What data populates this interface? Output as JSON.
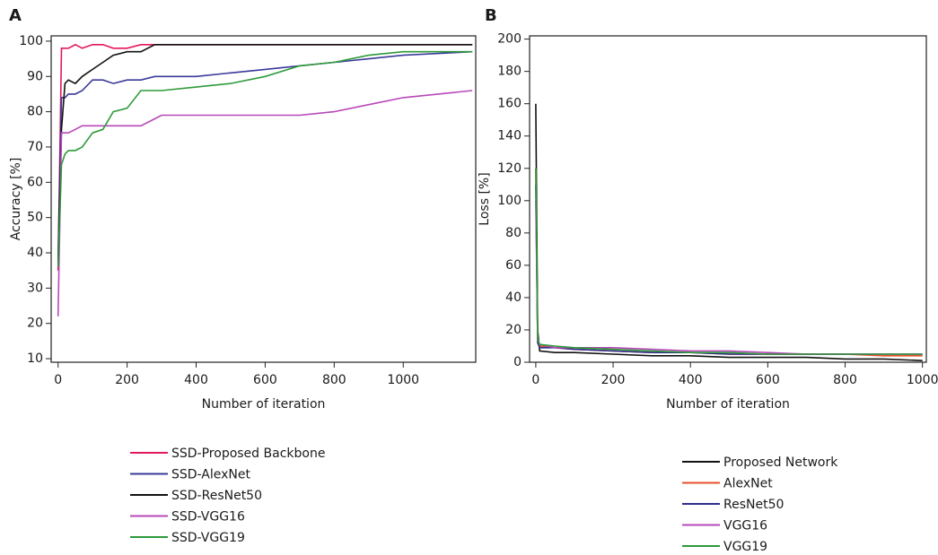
{
  "chart_data": [
    {
      "type": "line",
      "label": "A",
      "x_label": "Number of iteration",
      "y_label": "Accuracy [%]",
      "x": [
        0,
        10,
        20,
        30,
        50,
        70,
        100,
        130,
        160,
        200,
        240,
        280,
        300,
        400,
        500,
        600,
        700,
        800,
        900,
        1000,
        1200
      ],
      "series": [
        {
          "name": "SSD-Proposed Backbone",
          "color": "#e4185a",
          "values": [
            35,
            98,
            98,
            98,
            99,
            98,
            99,
            99,
            98,
            98,
            99,
            99,
            99,
            99,
            99,
            99,
            99,
            99,
            99,
            99,
            99
          ]
        },
        {
          "name": "SSD-AlexNet",
          "color": "#3a3a9a",
          "values": [
            38,
            84,
            84,
            85,
            85,
            86,
            89,
            89,
            88,
            89,
            89,
            90,
            90,
            90,
            91,
            92,
            93,
            94,
            95,
            96,
            97
          ]
        },
        {
          "name": "SSD-ResNet50",
          "color": "#111111",
          "values": [
            37,
            75,
            88,
            89,
            88,
            90,
            92,
            94,
            96,
            97,
            97,
            99,
            99,
            99,
            99,
            99,
            99,
            99,
            99,
            99,
            99
          ]
        },
        {
          "name": "SSD-VGG16",
          "color": "#b748b8",
          "values": [
            22,
            74,
            74,
            74,
            75,
            76,
            76,
            76,
            76,
            76,
            76,
            78,
            79,
            79,
            79,
            79,
            79,
            80,
            82,
            84,
            86
          ]
        },
        {
          "name": "SSD-VGG19",
          "color": "#2e9a3a",
          "values": [
            36,
            65,
            68,
            69,
            69,
            70,
            74,
            75,
            80,
            81,
            86,
            86,
            86,
            87,
            88,
            90,
            93,
            94,
            96,
            97,
            97
          ]
        }
      ],
      "xlim": [
        -20,
        1210
      ],
      "ylim": [
        9,
        101.5
      ],
      "xticks": [
        0,
        200,
        400,
        600,
        800,
        1000
      ],
      "yticks": [
        10,
        20,
        30,
        40,
        50,
        60,
        70,
        80,
        90,
        100
      ]
    },
    {
      "type": "line",
      "label": "B",
      "x_label": "Number of iteration",
      "y_label": "Loss [%]",
      "x": [
        0,
        5,
        10,
        50,
        100,
        200,
        300,
        400,
        500,
        600,
        700,
        800,
        900,
        1000
      ],
      "series": [
        {
          "name": "Proposed Network",
          "color": "#111111",
          "values": [
            160,
            20,
            7,
            6,
            6,
            5,
            4,
            4,
            3,
            3,
            3,
            2,
            2,
            1
          ]
        },
        {
          "name": "AlexNet",
          "color": "#e8502a",
          "values": [
            120,
            15,
            10,
            9,
            8,
            7,
            6,
            6,
            5,
            5,
            5,
            5,
            4,
            4
          ]
        },
        {
          "name": "ResNet50",
          "color": "#2e2e8a",
          "values": [
            110,
            12,
            9,
            9,
            8,
            7,
            6,
            6,
            5,
            5,
            5,
            5,
            5,
            5
          ]
        },
        {
          "name": "VGG16",
          "color": "#b748b8",
          "values": [
            100,
            14,
            11,
            9,
            9,
            9,
            8,
            7,
            7,
            6,
            5,
            5,
            5,
            5
          ]
        },
        {
          "name": "VGG19",
          "color": "#2e9a3a",
          "values": [
            120,
            15,
            11,
            10,
            9,
            8,
            7,
            6,
            6,
            5,
            5,
            5,
            5,
            5
          ]
        }
      ],
      "xlim": [
        -16,
        1010
      ],
      "ylim": [
        0,
        202
      ],
      "xticks": [
        0,
        200,
        400,
        600,
        800,
        1000
      ],
      "yticks": [
        0,
        20,
        40,
        60,
        80,
        100,
        120,
        140,
        160,
        180,
        200
      ]
    }
  ]
}
